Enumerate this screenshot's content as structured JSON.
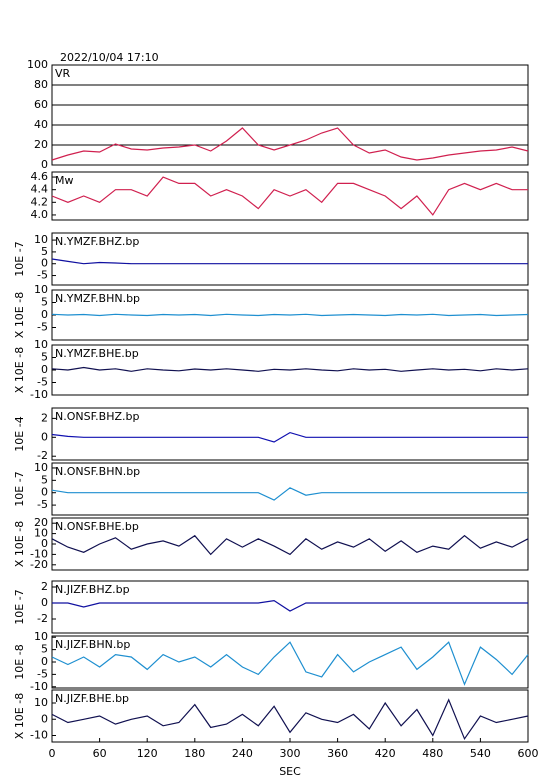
{
  "title": "2022/10/04 17:10",
  "chart_data": [
    {
      "type": "line",
      "title": "VR",
      "color": "#d0204f",
      "grid": true,
      "xlim": [
        0,
        600
      ],
      "ylim": [
        0,
        100
      ],
      "yticks": [
        0,
        20,
        40,
        60,
        80,
        100
      ],
      "x": [
        0,
        20,
        40,
        60,
        80,
        100,
        120,
        140,
        160,
        180,
        200,
        220,
        240,
        260,
        280,
        300,
        320,
        340,
        360,
        380,
        400,
        420,
        440,
        460,
        480,
        500,
        520,
        540,
        560,
        580,
        600
      ],
      "values": [
        5,
        10,
        14,
        13,
        21,
        16,
        15,
        17,
        18,
        20,
        14,
        24,
        37,
        20,
        15,
        20,
        25,
        32,
        37,
        20,
        12,
        15,
        8,
        5,
        7,
        10,
        12,
        14,
        15,
        18,
        14
      ]
    },
    {
      "type": "line",
      "title": "Mw",
      "color": "#d0204f",
      "grid": false,
      "xlim": [
        0,
        600
      ],
      "ylim": [
        3.92,
        4.68
      ],
      "yticks": [
        {
          "value": 4.0,
          "label": "4.0"
        },
        4.2,
        4.4,
        4.6
      ],
      "x": [
        0,
        20,
        40,
        60,
        80,
        100,
        120,
        140,
        160,
        180,
        200,
        220,
        240,
        260,
        280,
        300,
        320,
        340,
        360,
        380,
        400,
        420,
        440,
        460,
        480,
        500,
        520,
        540,
        560,
        580,
        600
      ],
      "values": [
        4.3,
        4.2,
        4.3,
        4.2,
        4.4,
        4.4,
        4.3,
        4.6,
        4.5,
        4.5,
        4.3,
        4.4,
        4.3,
        4.1,
        4.4,
        4.3,
        4.4,
        4.2,
        4.5,
        4.5,
        4.4,
        4.3,
        4.1,
        4.3,
        4.0,
        4.4,
        4.5,
        4.4,
        4.5,
        4.4,
        4.4
      ]
    },
    {
      "type": "line",
      "title": "N.YMZF.BHZ.bp",
      "ylabel": "10E -7",
      "color": "#1010a0",
      "grid": false,
      "xlim": [
        0,
        600
      ],
      "ylim": [
        -9,
        13
      ],
      "yticks": [
        -5,
        0,
        5,
        10
      ],
      "x": [
        0,
        20,
        40,
        60,
        80,
        100,
        120,
        140,
        160,
        180,
        200,
        220,
        240,
        260,
        280,
        300,
        320,
        340,
        360,
        380,
        400,
        420,
        440,
        460,
        480,
        500,
        520,
        540,
        560,
        580,
        600
      ],
      "values": [
        2,
        1,
        0,
        0.5,
        0.3,
        0,
        0,
        0,
        0,
        0,
        0,
        0,
        0,
        0,
        0,
        0,
        0,
        0,
        0,
        0,
        0,
        0,
        0,
        0,
        0,
        0,
        0,
        0,
        0,
        0,
        0
      ]
    },
    {
      "type": "line",
      "title": "N.YMZF.BHN.bp",
      "ylabel": "X 10E -8",
      "color": "#1e8fd0",
      "grid": false,
      "xlim": [
        0,
        600
      ],
      "ylim": [
        -10,
        10
      ],
      "yticks": [
        -5,
        0,
        5,
        10
      ],
      "x": [
        0,
        20,
        40,
        60,
        80,
        100,
        120,
        140,
        160,
        180,
        200,
        220,
        240,
        260,
        280,
        300,
        320,
        340,
        360,
        380,
        400,
        420,
        440,
        460,
        480,
        500,
        520,
        540,
        560,
        580,
        600
      ],
      "values": [
        0.3,
        0,
        0.2,
        -0.2,
        0.3,
        0,
        -0.2,
        0.2,
        0,
        0.2,
        -0.2,
        0.3,
        0,
        -0.2,
        0.2,
        0,
        0.3,
        -0.2,
        0,
        0.2,
        0,
        -0.2,
        0.2,
        0,
        0.3,
        -0.2,
        0,
        0.2,
        -0.2,
        0,
        0.2
      ]
    },
    {
      "type": "line",
      "title": "N.YMZF.BHE.bp",
      "ylabel": "X 10E -8",
      "color": "#101050",
      "grid": false,
      "xlim": [
        0,
        600
      ],
      "ylim": [
        -10,
        10
      ],
      "yticks": [
        -10,
        -5,
        0,
        5,
        10
      ],
      "x": [
        0,
        20,
        40,
        60,
        80,
        100,
        120,
        140,
        160,
        180,
        200,
        220,
        240,
        260,
        280,
        300,
        320,
        340,
        360,
        380,
        400,
        420,
        440,
        460,
        480,
        500,
        520,
        540,
        560,
        580,
        600
      ],
      "values": [
        0.5,
        0,
        1,
        0,
        0.5,
        -0.5,
        0.5,
        0,
        -0.3,
        0.4,
        0,
        0.5,
        0,
        -0.5,
        0.3,
        0,
        0.5,
        0,
        -0.3,
        0.5,
        0,
        0.3,
        -0.5,
        0,
        0.5,
        0,
        0.3,
        -0.3,
        0.5,
        0,
        0.5
      ]
    },
    {
      "type": "line",
      "title": "N.ONSF.BHZ.bp",
      "ylabel": "10E -4",
      "color": "#1010b0",
      "grid": false,
      "xlim": [
        0,
        600
      ],
      "ylim": [
        -2.4,
        3.1
      ],
      "yticks": [
        -2,
        0,
        2
      ],
      "x": [
        0,
        20,
        40,
        60,
        80,
        100,
        120,
        140,
        160,
        180,
        200,
        220,
        240,
        260,
        280,
        300,
        320,
        340,
        360,
        380,
        400,
        420,
        440,
        460,
        480,
        500,
        520,
        540,
        560,
        580,
        600
      ],
      "values": [
        0.3,
        0.1,
        0,
        0,
        0,
        0,
        0,
        0,
        0,
        0,
        0,
        0,
        0,
        0,
        -0.5,
        0.5,
        0,
        0,
        0,
        0,
        0,
        0,
        0,
        0,
        0,
        0,
        0,
        0,
        0,
        0,
        0
      ]
    },
    {
      "type": "line",
      "title": "N.ONSF.BHN.bp",
      "ylabel": "10E -7",
      "color": "#1e8fd0",
      "grid": false,
      "xlim": [
        0,
        600
      ],
      "ylim": [
        -9,
        12
      ],
      "yticks": [
        -5,
        0,
        5,
        10
      ],
      "x": [
        0,
        20,
        40,
        60,
        80,
        100,
        120,
        140,
        160,
        180,
        200,
        220,
        240,
        260,
        280,
        300,
        320,
        340,
        360,
        380,
        400,
        420,
        440,
        460,
        480,
        500,
        520,
        540,
        560,
        580,
        600
      ],
      "values": [
        1,
        0,
        0,
        0,
        0,
        0,
        0,
        0,
        0,
        0,
        0,
        0,
        0,
        0,
        -3,
        2,
        -1,
        0,
        0,
        0,
        0,
        0,
        0,
        0,
        0,
        0,
        0,
        0,
        0,
        0,
        0
      ]
    },
    {
      "type": "line",
      "title": "N.ONSF.BHE.bp",
      "ylabel": "X 10E -8",
      "color": "#101050",
      "grid": false,
      "xlim": [
        0,
        600
      ],
      "ylim": [
        -25,
        25
      ],
      "yticks": [
        -20,
        -10,
        0,
        10,
        20
      ],
      "x": [
        0,
        20,
        40,
        60,
        80,
        100,
        120,
        140,
        160,
        180,
        200,
        220,
        240,
        260,
        280,
        300,
        320,
        340,
        360,
        380,
        400,
        420,
        440,
        460,
        480,
        500,
        520,
        540,
        560,
        580,
        600
      ],
      "values": [
        5,
        -3,
        -8,
        0,
        6,
        -5,
        0,
        3,
        -2,
        8,
        -10,
        5,
        -3,
        5,
        -2,
        -10,
        5,
        -5,
        2,
        -3,
        5,
        -7,
        3,
        -8,
        -2,
        -5,
        8,
        -4,
        2,
        -3,
        5
      ]
    },
    {
      "type": "line",
      "title": "N.JIZF.BHZ.bp",
      "ylabel": "10E -7",
      "color": "#1010a0",
      "grid": false,
      "xlim": [
        0,
        600
      ],
      "ylim": [
        -3.75,
        2.75
      ],
      "yticks": [
        -2,
        0,
        2
      ],
      "x": [
        0,
        20,
        40,
        60,
        80,
        100,
        120,
        140,
        160,
        180,
        200,
        220,
        240,
        260,
        280,
        300,
        320,
        340,
        360,
        380,
        400,
        420,
        440,
        460,
        480,
        500,
        520,
        540,
        560,
        580,
        600
      ],
      "values": [
        0,
        0,
        -0.5,
        0,
        0,
        0,
        0,
        0,
        0,
        0,
        0,
        0,
        0,
        0,
        0.3,
        -1,
        0,
        0,
        0,
        0,
        0,
        0,
        0,
        0,
        0,
        0,
        0,
        0,
        0,
        0,
        0
      ]
    },
    {
      "type": "line",
      "title": "N.JIZF.BHN.bp",
      "ylabel": "10E -8",
      "color": "#1e8fd0",
      "grid": false,
      "xlim": [
        0,
        600
      ],
      "ylim": [
        -10.5,
        10.5
      ],
      "yticks": [
        -10,
        -5,
        0,
        5,
        10
      ],
      "x": [
        0,
        20,
        40,
        60,
        80,
        100,
        120,
        140,
        160,
        180,
        200,
        220,
        240,
        260,
        280,
        300,
        320,
        340,
        360,
        380,
        400,
        420,
        440,
        460,
        480,
        500,
        520,
        540,
        560,
        580,
        600
      ],
      "values": [
        2,
        -1,
        2,
        -2,
        3,
        2,
        -3,
        3,
        0,
        2,
        -2,
        3,
        -2,
        -5,
        2,
        8,
        -4,
        -6,
        3,
        -4,
        0,
        3,
        6,
        -3,
        2,
        8,
        -9,
        6,
        1,
        -5,
        3
      ]
    },
    {
      "type": "line",
      "title": "N.JIZF.BHE.bp",
      "ylabel": "X 10E -8",
      "color": "#101050",
      "grid": false,
      "xlim": [
        0,
        600
      ],
      "ylim": [
        -14,
        18
      ],
      "yticks": [
        -10,
        0,
        10
      ],
      "xticks": [
        0,
        60,
        120,
        180,
        240,
        300,
        360,
        420,
        480,
        540,
        600
      ],
      "xlabel": "SEC",
      "x": [
        0,
        20,
        40,
        60,
        80,
        100,
        120,
        140,
        160,
        180,
        200,
        220,
        240,
        260,
        280,
        300,
        320,
        340,
        360,
        380,
        400,
        420,
        440,
        460,
        480,
        500,
        520,
        540,
        560,
        580,
        600
      ],
      "values": [
        3,
        -2,
        0,
        2,
        -3,
        0,
        2,
        -4,
        -2,
        9,
        -5,
        -3,
        3,
        -4,
        8,
        -8,
        4,
        0,
        -2,
        3,
        -6,
        10,
        -4,
        6,
        -10,
        12,
        -12,
        2,
        -2,
        0,
        2
      ]
    }
  ]
}
